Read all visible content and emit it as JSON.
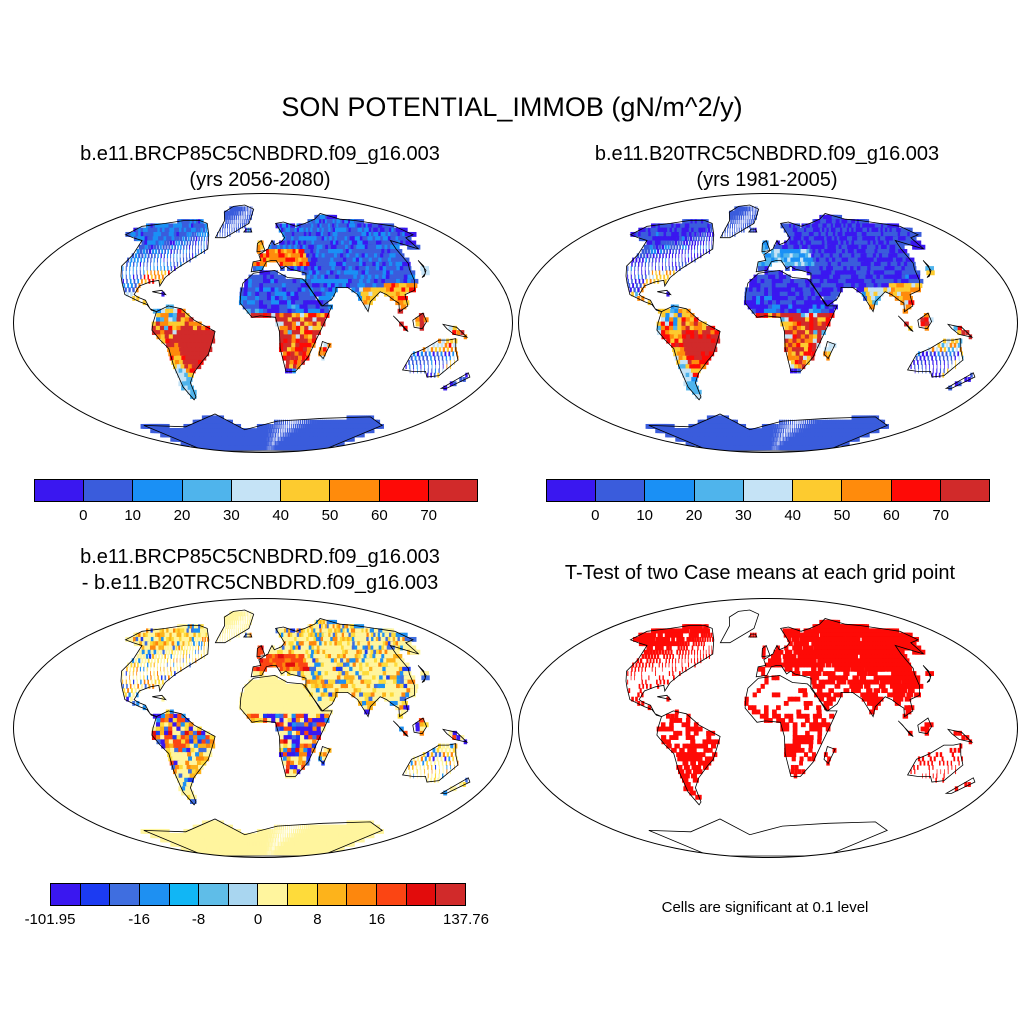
{
  "main_title": "SON POTENTIAL_IMMOB (gN/m^2/y)",
  "panels": {
    "top_left": {
      "title_line1": "b.e11.BRCP85C5CNBDRD.f09_g16.003",
      "title_line2": "(yrs 2056-2080)"
    },
    "top_right": {
      "title_line1": "b.e11.B20TRC5CNBDRD.f09_g16.003",
      "title_line2": "(yrs 1981-2005)"
    },
    "bottom_left": {
      "title_line1": "b.e11.BRCP85C5CNBDRD.f09_g16.003",
      "title_line2": "- b.e11.B20TRC5CNBDRD.f09_g16.003"
    },
    "bottom_right": {
      "title": "T-Test of two Case means at each grid point",
      "note": "Cells are significant at 0.1 level"
    }
  },
  "colorbar_abs": {
    "colors": [
      "#3a17f0",
      "#3a5cdc",
      "#1a90f5",
      "#4fb4ec",
      "#c5e3f6",
      "#fdcb2f",
      "#ff8b0c",
      "#fe0a06",
      "#d12a2a"
    ],
    "labels": [
      "0",
      "10",
      "20",
      "30",
      "40",
      "50",
      "60",
      "70"
    ]
  },
  "colorbar_diff": {
    "colors": [
      "#3a17f0",
      "#1c3bf2",
      "#3f6ee0",
      "#1e90f2",
      "#11b6f5",
      "#5fbde8",
      "#a9d6f0",
      "#fff59e",
      "#fedb3a",
      "#fdb31b",
      "#fd870d",
      "#fb4513",
      "#e20c0c",
      "#d12a2a"
    ],
    "labels": [
      "-101.95",
      "-16",
      "-8",
      "0",
      "8",
      "16",
      "137.76"
    ]
  },
  "colors": {
    "ocean": "#ffffff",
    "land_low": "#3a5cdc",
    "diff_neutral": "#fff59e",
    "significant": "#fe0a06"
  }
}
